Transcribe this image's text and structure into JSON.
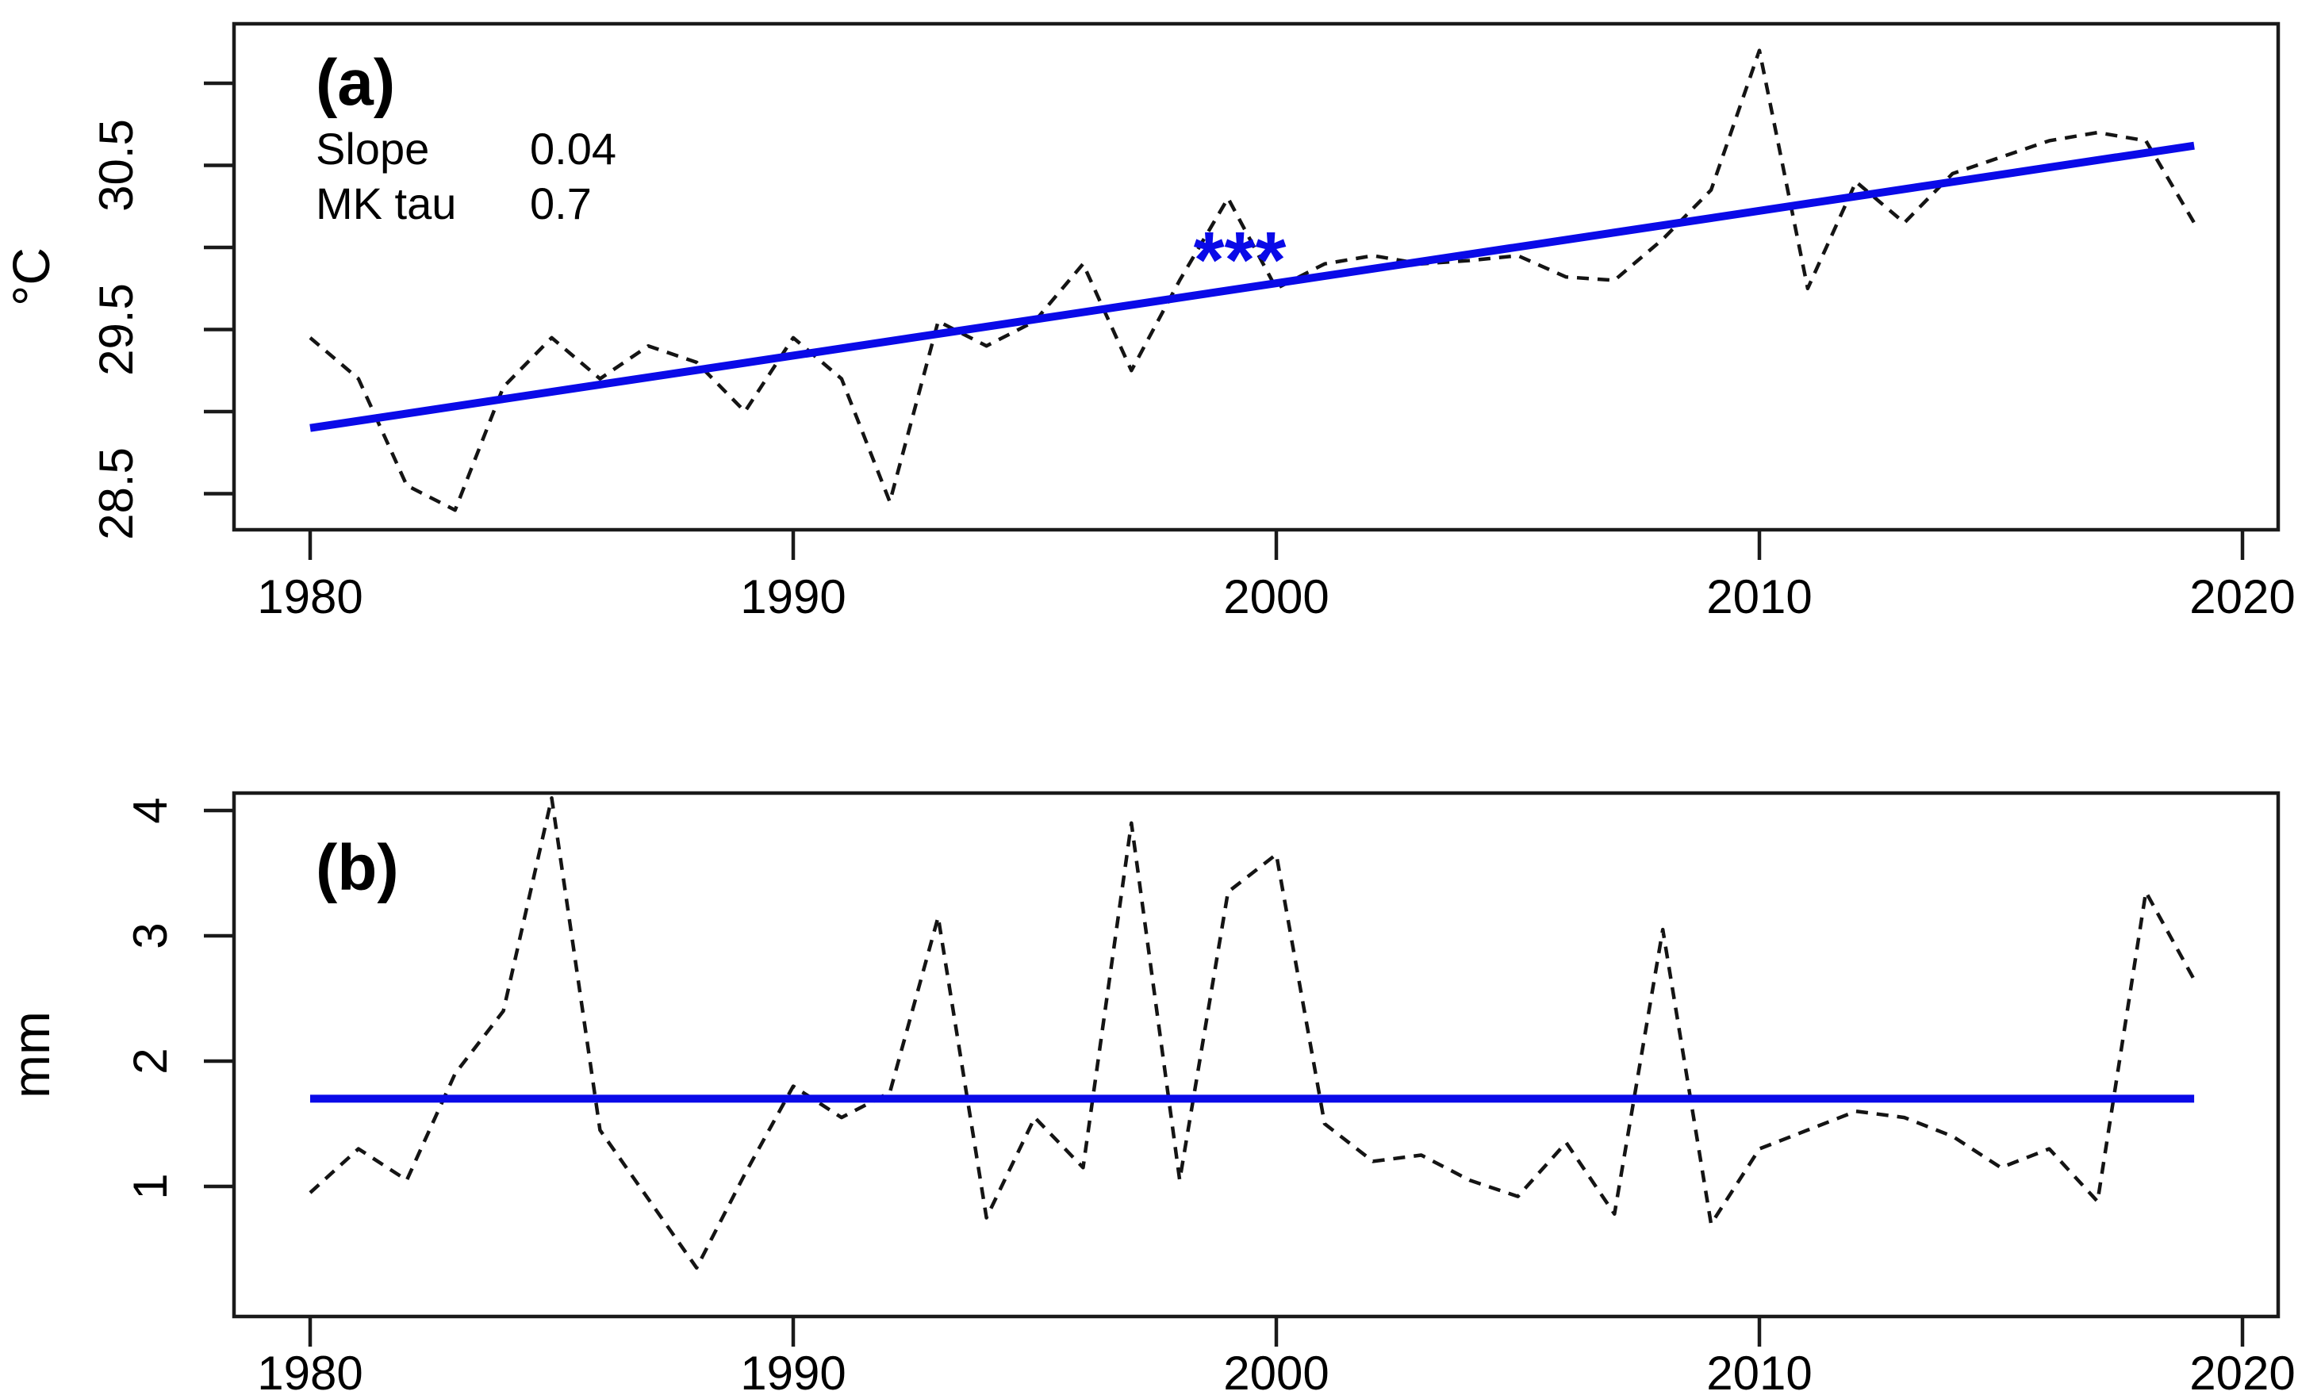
{
  "figure": {
    "background": "#ffffff",
    "axis_color": "#1a1a1a",
    "trend_color": "#0a0ae8",
    "series_color": "#141414"
  },
  "chart_data": [
    {
      "type": "line",
      "panel_id": "a",
      "title": "(a)",
      "xlabel": "",
      "ylabel": "°C",
      "stats": [
        {
          "name": "Slope",
          "value": "0.04"
        },
        {
          "name": "MK tau",
          "value": "0.7"
        }
      ],
      "annotations": [
        {
          "text": "***",
          "x": 1999.6,
          "y": 29.88,
          "color": "#0a0ae8"
        }
      ],
      "x_ticks": [
        1980,
        1990,
        2000,
        2010,
        2020
      ],
      "y_ticks": [
        {
          "v": 28.5,
          "label": "28.5"
        },
        {
          "v": 29.0,
          "label": ""
        },
        {
          "v": 29.5,
          "label": "29.5"
        },
        {
          "v": 30.0,
          "label": ""
        },
        {
          "v": 30.5,
          "label": "30.5"
        },
        {
          "v": 31.0,
          "label": ""
        }
      ],
      "xlim": [
        1978.4,
        2020.8
      ],
      "ylim": [
        28.28,
        31.36
      ],
      "legend": "none",
      "grid": false,
      "series": {
        "name": "annual-mean-temperature",
        "style": "dashed",
        "color": "#141414",
        "x": [
          1980,
          1981,
          1982,
          1983,
          1984,
          1985,
          1986,
          1987,
          1988,
          1989,
          1990,
          1991,
          1992,
          1993,
          1994,
          1995,
          1996,
          1997,
          1998,
          1999,
          2000,
          2001,
          2002,
          2003,
          2004,
          2005,
          2006,
          2007,
          2008,
          2009,
          2010,
          2011,
          2012,
          2013,
          2014,
          2015,
          2016,
          2017,
          2018,
          2019
        ],
        "values": [
          29.45,
          29.2,
          28.55,
          28.4,
          29.15,
          29.45,
          29.2,
          29.4,
          29.3,
          29.0,
          29.45,
          29.2,
          28.45,
          29.55,
          29.4,
          29.55,
          29.9,
          29.25,
          29.8,
          30.3,
          29.75,
          29.9,
          29.95,
          29.9,
          29.92,
          29.95,
          29.82,
          29.8,
          30.05,
          30.35,
          31.2,
          29.75,
          30.4,
          30.15,
          30.45,
          30.55,
          30.65,
          30.7,
          30.65,
          30.15
        ]
      },
      "trend_line": {
        "name": "sen-slope-trend",
        "style": "solid",
        "color": "#0a0ae8",
        "x": [
          1980,
          2019
        ],
        "y": [
          28.9,
          30.62
        ]
      }
    },
    {
      "type": "line",
      "panel_id": "b",
      "title": "(b)",
      "xlabel": "",
      "ylabel": "mm",
      "stats": [],
      "annotations": [],
      "x_ticks": [
        1980,
        1990,
        2000,
        2010,
        2020
      ],
      "y_ticks": [
        {
          "v": 1,
          "label": "1"
        },
        {
          "v": 2,
          "label": "2"
        },
        {
          "v": 3,
          "label": "3"
        },
        {
          "v": 4,
          "label": "4"
        }
      ],
      "xlim": [
        1978.4,
        2020.8
      ],
      "ylim": [
        -0.04,
        4.14
      ],
      "legend": "none",
      "grid": false,
      "series": {
        "name": "annual-precipitation",
        "style": "dashed",
        "color": "#141414",
        "x": [
          1980,
          1981,
          1982,
          1983,
          1984,
          1985,
          1986,
          1987,
          1988,
          1989,
          1990,
          1991,
          1992,
          1993,
          1994,
          1995,
          1996,
          1997,
          1998,
          1999,
          2000,
          2001,
          2002,
          2003,
          2004,
          2005,
          2006,
          2007,
          2008,
          2009,
          2010,
          2011,
          2012,
          2013,
          2014,
          2015,
          2016,
          2017,
          2018,
          2019
        ],
        "values": [
          0.95,
          1.3,
          1.05,
          1.9,
          2.4,
          4.1,
          1.45,
          0.9,
          0.35,
          1.1,
          1.8,
          1.55,
          1.75,
          3.15,
          0.75,
          1.55,
          1.15,
          3.9,
          1.05,
          3.35,
          3.65,
          1.5,
          1.2,
          1.25,
          1.05,
          0.92,
          1.35,
          0.78,
          3.05,
          0.7,
          1.3,
          1.45,
          1.6,
          1.55,
          1.4,
          1.15,
          1.3,
          0.88,
          3.35,
          2.65
        ]
      },
      "trend_line": {
        "name": "mean-line",
        "style": "solid",
        "color": "#0a0ae8",
        "x": [
          1980,
          2019
        ],
        "y": [
          1.7,
          1.7
        ]
      }
    }
  ]
}
